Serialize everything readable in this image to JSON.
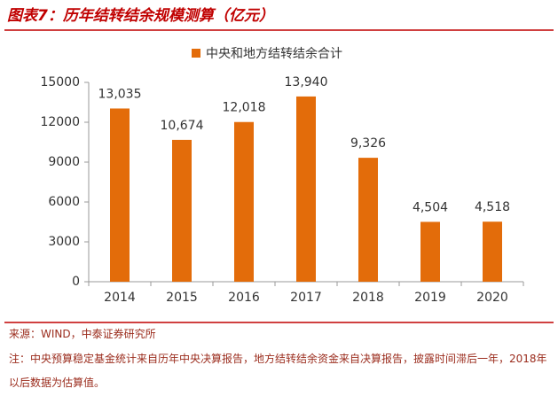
{
  "chart_data": {
    "type": "bar",
    "title": "图表7：历年结转结余规模测算（亿元）",
    "legend": "中央和地方结转结余合计",
    "categories": [
      "2014",
      "2015",
      "2016",
      "2017",
      "2018",
      "2019",
      "2020"
    ],
    "series": [
      {
        "name": "中央和地方结转结余合计",
        "color": "#e36c0a",
        "values": [
          13035,
          10674,
          12018,
          13940,
          9326,
          4504,
          4518
        ],
        "value_labels": [
          "13,035",
          "10,674",
          "12,018",
          "13,940",
          "9,326",
          "4,504",
          "4,518"
        ]
      }
    ],
    "ylim": [
      0,
      15000
    ],
    "yticks": [
      0,
      3000,
      6000,
      9000,
      12000,
      15000
    ],
    "source": "来源：WIND，中泰证券研究所",
    "note": "注：中央预算稳定基金统计来自历年中央决算报告，地方结转结余资金来自决算报告，披露时间滞后一年，2018年以后数据为估算值。"
  }
}
